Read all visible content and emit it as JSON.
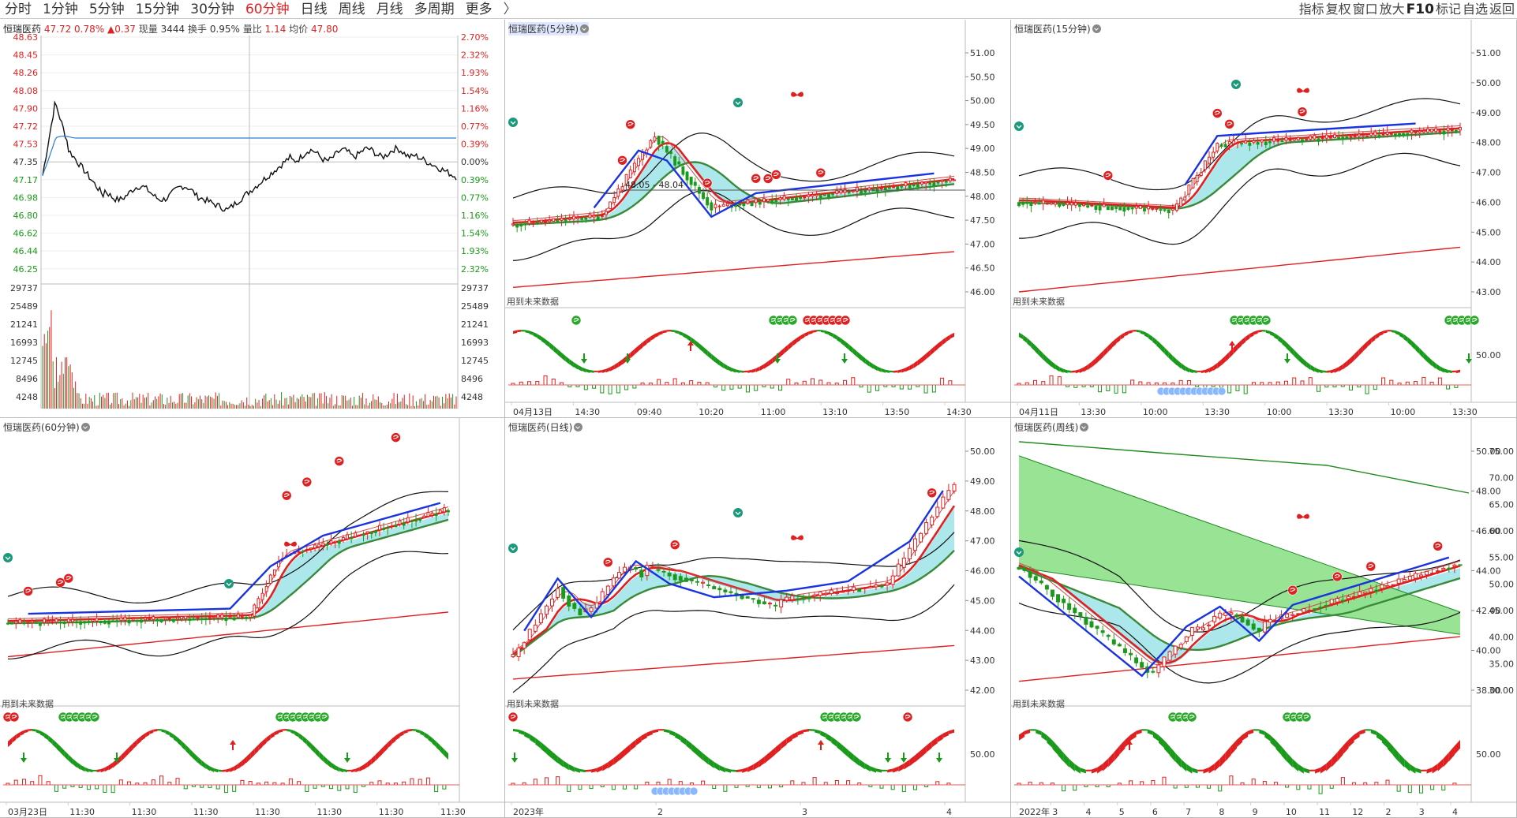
{
  "toolbar": {
    "tabs": [
      {
        "label": "分时",
        "active": false
      },
      {
        "label": "1分钟",
        "active": false
      },
      {
        "label": "5分钟",
        "active": false
      },
      {
        "label": "15分钟",
        "active": false
      },
      {
        "label": "30分钟",
        "active": false
      },
      {
        "label": "60分钟",
        "active": true
      },
      {
        "label": "日线",
        "active": false
      },
      {
        "label": "周线",
        "active": false
      },
      {
        "label": "月线",
        "active": false
      },
      {
        "label": "多周期",
        "active": false
      },
      {
        "label": "更多",
        "active": false
      }
    ],
    "more_arrow": "〉",
    "right": [
      "指标",
      "复权",
      "窗口",
      "放大",
      "F10",
      "标记",
      "自选",
      "返回"
    ]
  },
  "intraday": {
    "quote": {
      "name": "恒瑞医药",
      "price": "47.72",
      "pct": "0.78%",
      "chg": "▲0.37",
      "vol_label": "现量",
      "vol": "3444",
      "turn_label": "换手",
      "turn": "0.95%",
      "ratio_label": "量比",
      "ratio": "1.14",
      "avg_label": "均价",
      "avg": "47.80"
    },
    "left_labels": [
      "48.63",
      "48.45",
      "48.26",
      "48.08",
      "47.90",
      "47.72",
      "47.53",
      "47.35",
      "47.17",
      "46.98",
      "46.80",
      "46.62",
      "46.44",
      "46.25"
    ],
    "right_labels": [
      "2.70%",
      "2.32%",
      "1.93%",
      "1.54%",
      "1.16%",
      "0.77%",
      "0.39%",
      "0.00%",
      "0.39%",
      "0.77%",
      "1.16%",
      "1.54%",
      "1.93%",
      "2.32%"
    ],
    "vol_labels": [
      "29737",
      "25489",
      "21241",
      "16993",
      "12745",
      "8496",
      "4248"
    ]
  },
  "panels": {
    "p5": {
      "title": "恒瑞医药(5分钟)",
      "price_labels": [
        "51.00",
        "50.50",
        "50.00",
        "49.50",
        "49.00",
        "48.50",
        "48.00",
        "47.50",
        "47.00",
        "46.50",
        "46.00"
      ],
      "dates": [
        "04月13日",
        "14:30",
        "09:40",
        "10:20",
        "11:00",
        "13:10",
        "13:50",
        "14:30"
      ],
      "annotation": "48.05 - 48.04",
      "future": "用到未来数据"
    },
    "p15": {
      "title": "恒瑞医药(15分钟)",
      "price_labels": [
        "51.00",
        "50.00",
        "49.00",
        "48.00",
        "47.00",
        "46.00",
        "45.00",
        "44.00",
        "43.00"
      ],
      "dates": [
        "04月11日",
        "13:30",
        "10:00",
        "13:30",
        "10:00",
        "13:30",
        "10:00",
        "13:30"
      ],
      "future": "用到未来数据",
      "osc_label": "50.00"
    },
    "p60": {
      "title": "恒瑞医药(60分钟)",
      "dates": [
        "03月23日",
        "11:30",
        "11:30",
        "11:30",
        "11:30",
        "11:30",
        "11:30",
        "11:30"
      ],
      "future": "用到未来数据"
    },
    "pday": {
      "title": "恒瑞医药(日线)",
      "price_labels": [
        "50.00",
        "49.00",
        "48.00",
        "47.00",
        "46.00",
        "45.00",
        "44.00",
        "43.00",
        "42.00"
      ],
      "dates": [
        "2023年",
        "2",
        "3",
        "4"
      ],
      "future": "用到未来数据",
      "osc_label": "50.00"
    },
    "pweek": {
      "title": "恒瑞医药(周线)",
      "price_labels": [
        "50.00",
        "48.00",
        "46.00",
        "44.00",
        "42.00",
        "40.00",
        "38.00"
      ],
      "right_labels": [
        "75.00",
        "70.00",
        "65.00",
        "60.00",
        "55.00",
        "50.00",
        "45.00",
        "40.00",
        "35.00",
        "30.00"
      ],
      "dates": [
        "2022年",
        "3",
        "4",
        "5",
        "6",
        "7",
        "8",
        "9",
        "10",
        "11",
        "12",
        "2",
        "3",
        "4"
      ],
      "future": "用到未来数据",
      "osc_label": "50.00"
    }
  },
  "colors": {
    "up": "#e02020",
    "down": "#1a9a1a",
    "blue": "#1a33e0",
    "avg": "#2a7fd0",
    "band": "#a8e6ea",
    "greenband": "#8ee08a"
  }
}
